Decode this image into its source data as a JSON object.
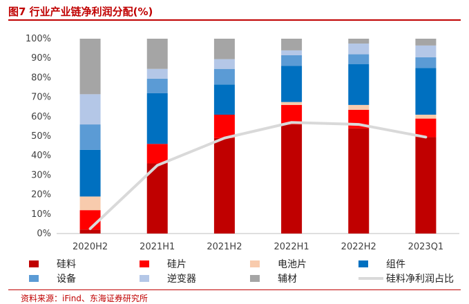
{
  "title": "图7 行业产业链净利润分配(%)",
  "source": "资料来源：iFind、东海证券研究所",
  "chart_data": {
    "type": "bar",
    "stacked": true,
    "categories": [
      "2020H2",
      "2021H1",
      "2021H2",
      "2022H1",
      "2022H2",
      "2023Q1"
    ],
    "ylim": [
      0,
      100
    ],
    "yticks": [
      0,
      10,
      20,
      30,
      40,
      50,
      60,
      70,
      80,
      90,
      100
    ],
    "ytick_suffix": "%",
    "series": [
      {
        "name": "硅料",
        "color": "#c00000",
        "values": [
          2,
          36,
          49,
          56,
          54,
          49.5
        ]
      },
      {
        "name": "硅片",
        "color": "#ff0000",
        "values": [
          10,
          10,
          12,
          10,
          9.5,
          9.5
        ]
      },
      {
        "name": "电池片",
        "color": "#f8cbad",
        "values": [
          7,
          0,
          0,
          1.5,
          2.5,
          2
        ]
      },
      {
        "name": "组件",
        "color": "#0070c0",
        "values": [
          24,
          26,
          15.5,
          18.5,
          21,
          24
        ]
      },
      {
        "name": "设备",
        "color": "#5b9bd5",
        "values": [
          13,
          7.5,
          8,
          5.5,
          5,
          5.5
        ]
      },
      {
        "name": "逆变器",
        "color": "#b4c7e7",
        "values": [
          15.5,
          5,
          5,
          2.5,
          5.5,
          6
        ]
      },
      {
        "name": "辅材",
        "color": "#a5a5a5",
        "values": [
          28.5,
          15.5,
          10.5,
          6,
          2.5,
          3.5
        ]
      }
    ],
    "line": {
      "name": "硅料净利润占比",
      "color": "#d9d9d9",
      "values": [
        2.5,
        35,
        49,
        57,
        56,
        49.5
      ]
    },
    "legend_position": "bottom"
  }
}
